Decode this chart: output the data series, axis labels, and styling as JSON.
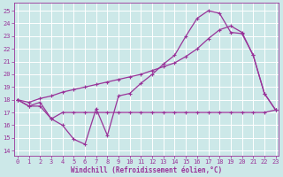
{
  "xlabel": "Windchill (Refroidissement éolien,°C)",
  "bg_color": "#cce8e8",
  "grid_color": "#ffffff",
  "line_color": "#993399",
  "x_ticks": [
    0,
    1,
    2,
    3,
    4,
    5,
    6,
    7,
    8,
    9,
    10,
    11,
    12,
    13,
    14,
    15,
    16,
    17,
    18,
    19,
    20,
    21,
    22,
    23
  ],
  "y_ticks": [
    14,
    15,
    16,
    17,
    18,
    19,
    20,
    21,
    22,
    23,
    24,
    25
  ],
  "xlim": [
    -0.3,
    23.3
  ],
  "ylim": [
    13.6,
    25.6
  ],
  "curve1_x": [
    0,
    1,
    2,
    3,
    4,
    5,
    6,
    7,
    8,
    9,
    10,
    11,
    12,
    13,
    14,
    15,
    16,
    17,
    18,
    19,
    20,
    21,
    22,
    23
  ],
  "curve1_y": [
    18.0,
    17.5,
    17.8,
    16.5,
    16.0,
    14.9,
    14.5,
    17.3,
    15.2,
    18.3,
    18.5,
    19.3,
    20.0,
    20.8,
    21.5,
    23.0,
    24.4,
    25.0,
    24.8,
    23.3,
    23.2,
    21.5,
    18.5,
    17.2
  ],
  "curve2_x": [
    0,
    1,
    2,
    3,
    4,
    5,
    6,
    7,
    8,
    9,
    10,
    11,
    12,
    13,
    14,
    15,
    16,
    17,
    18,
    19,
    20,
    21,
    22,
    23
  ],
  "curve2_y": [
    18.0,
    17.8,
    18.1,
    18.3,
    18.6,
    18.8,
    19.0,
    19.2,
    19.4,
    19.6,
    19.8,
    20.0,
    20.3,
    20.6,
    20.9,
    21.4,
    22.0,
    22.8,
    23.5,
    23.8,
    23.3,
    21.5,
    18.5,
    17.2
  ],
  "curve3_x": [
    0,
    1,
    2,
    3,
    4,
    5,
    6,
    7,
    8,
    9,
    10,
    11,
    12,
    13,
    14,
    15,
    16,
    17,
    18,
    19,
    20,
    21,
    22,
    23
  ],
  "curve3_y": [
    18.0,
    17.5,
    17.5,
    16.5,
    17.0,
    17.0,
    17.0,
    17.0,
    17.0,
    17.0,
    17.0,
    17.0,
    17.0,
    17.0,
    17.0,
    17.0,
    17.0,
    17.0,
    17.0,
    17.0,
    17.0,
    17.0,
    17.0,
    17.2
  ],
  "tick_fontsize": 5,
  "xlabel_fontsize": 5.5
}
